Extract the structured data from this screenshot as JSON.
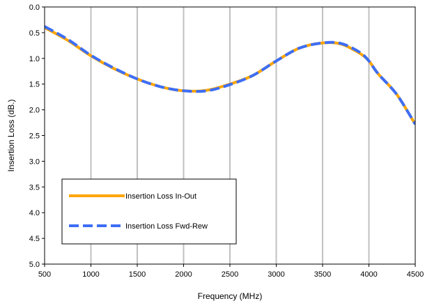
{
  "chart_data": {
    "type": "line",
    "xlabel": "Frequency (MHz)",
    "ylabel": "Insertion Loss (dB.)",
    "xlim": [
      500,
      4500
    ],
    "ylim": [
      0.0,
      5.0
    ],
    "y_inverted": true,
    "x_ticks": [
      "500",
      "1000",
      "1500",
      "2000",
      "2500",
      "3000",
      "3500",
      "4000",
      "4500"
    ],
    "y_ticks": [
      "0.0",
      "0.5",
      "1.0",
      "1.5",
      "2.0",
      "2.5",
      "3.0",
      "3.5",
      "4.0",
      "4.5",
      "5.0"
    ],
    "grid": {
      "vertical": true,
      "horizontal": false
    },
    "legend_position": "lower-left",
    "series": [
      {
        "name": "Insertion Loss In-Out",
        "color": "#FFA500",
        "style": "solid",
        "x": [
          500,
          750,
          1000,
          1250,
          1500,
          1750,
          2000,
          2250,
          2500,
          2750,
          3000,
          3250,
          3500,
          3700,
          3900,
          4000,
          4100,
          4300,
          4500
        ],
        "y": [
          0.4,
          0.65,
          0.95,
          1.2,
          1.4,
          1.55,
          1.63,
          1.62,
          1.5,
          1.33,
          1.05,
          0.8,
          0.7,
          0.72,
          0.9,
          1.05,
          1.3,
          1.7,
          2.28
        ]
      },
      {
        "name": "Insertion Loss Fwd-Rew",
        "color": "#3D6EF5",
        "style": "dashed",
        "x": [
          500,
          750,
          1000,
          1250,
          1500,
          1750,
          2000,
          2250,
          2500,
          2750,
          3000,
          3250,
          3500,
          3700,
          3900,
          4000,
          4100,
          4300,
          4500
        ],
        "y": [
          0.38,
          0.63,
          0.94,
          1.19,
          1.4,
          1.55,
          1.63,
          1.63,
          1.51,
          1.33,
          1.05,
          0.8,
          0.7,
          0.71,
          0.88,
          1.05,
          1.3,
          1.7,
          2.28
        ]
      }
    ]
  }
}
